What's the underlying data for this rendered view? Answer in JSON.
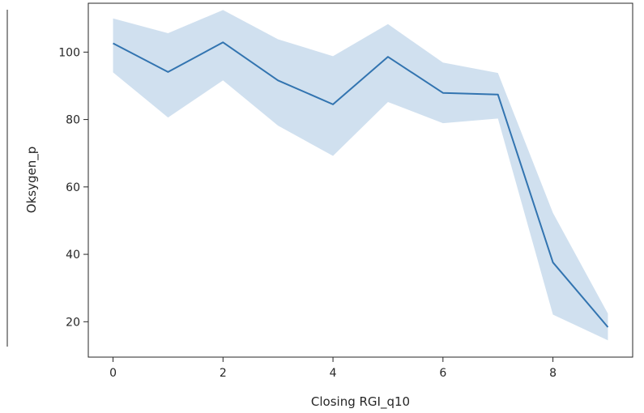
{
  "chart_data": {
    "type": "line",
    "title": "",
    "xlabel": "Closing RGI_q10",
    "ylabel": "Oksygen_p",
    "xlim": [
      -0.45,
      9.45
    ],
    "ylim": [
      9.5,
      114.5
    ],
    "xticks": [
      0,
      2,
      4,
      6,
      8
    ],
    "yticks": [
      20,
      40,
      60,
      80,
      100
    ],
    "grid": false,
    "legend": "none",
    "colors": {
      "line": "#3274b0",
      "band": "#a9c7e2"
    },
    "x": [
      0,
      1,
      2,
      3,
      4,
      5,
      6,
      7,
      8,
      9
    ],
    "series": [
      {
        "values": [
          102.6,
          94.1,
          102.9,
          91.6,
          84.5,
          98.6,
          87.9,
          87.4,
          37.6,
          18.4
        ],
        "ci_lower": [
          94.0,
          80.6,
          91.6,
          78.2,
          69.2,
          85.2,
          78.9,
          80.3,
          22.1,
          14.5
        ],
        "ci_upper": [
          110.0,
          105.6,
          112.5,
          103.8,
          98.8,
          108.3,
          96.9,
          93.8,
          52.3,
          22.4
        ]
      }
    ]
  }
}
